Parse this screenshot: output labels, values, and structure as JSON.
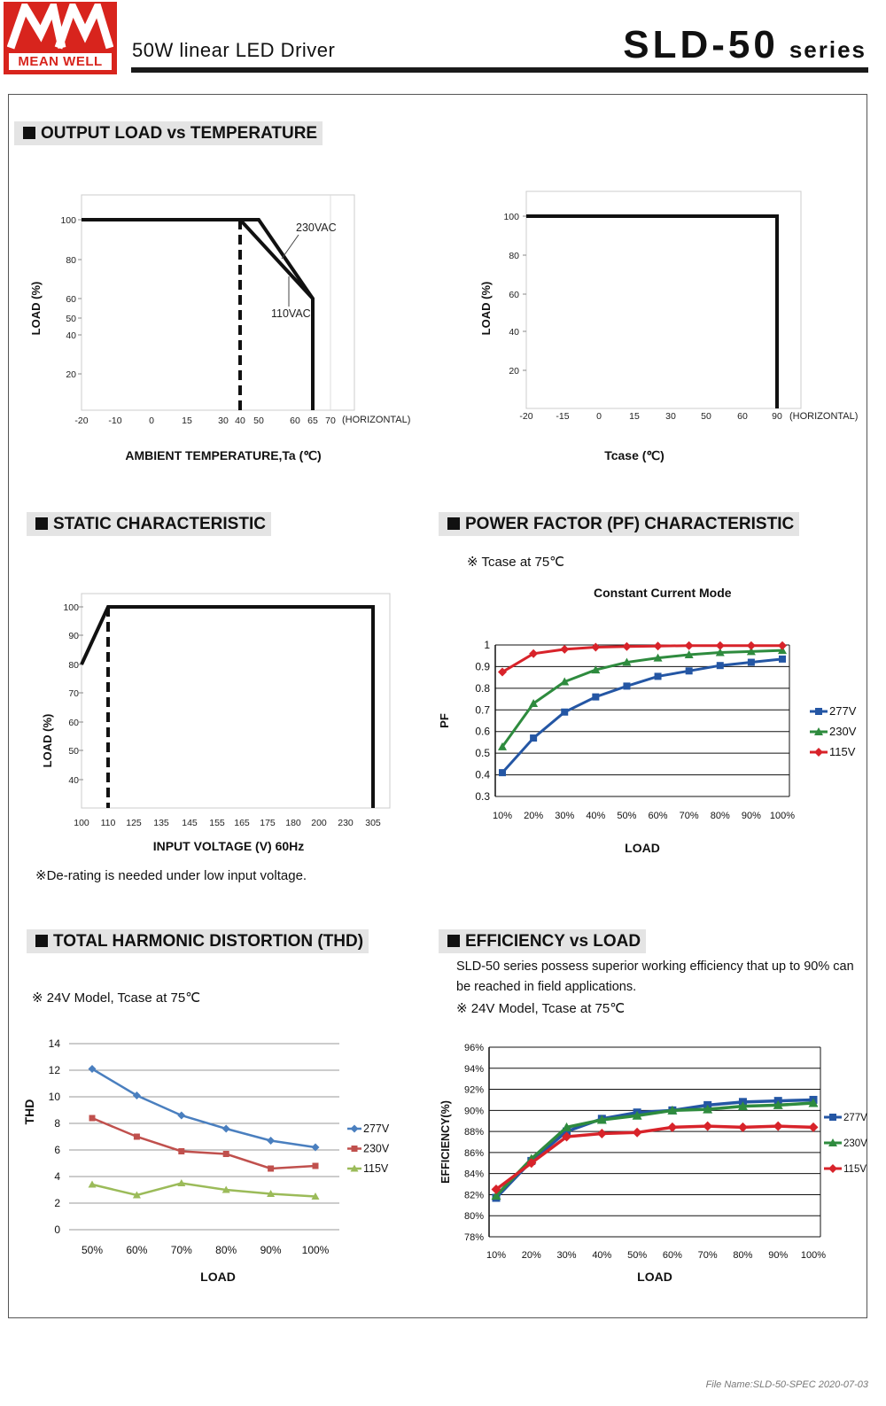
{
  "header": {
    "logo_mark": "MW",
    "brand": "MEAN WELL",
    "subtitle": "50W linear LED Driver",
    "model": "SLD-50",
    "series_word": "series"
  },
  "sections": {
    "output_load": "OUTPUT LOAD vs TEMPERATURE",
    "static": "STATIC CHARACTERISTIC",
    "pf": "POWER FACTOR (PF) CHARACTERISTIC",
    "thd": "TOTAL HARMONIC DISTORTION (THD)",
    "efficiency": "EFFICIENCY vs LOAD"
  },
  "notes": {
    "derating": "※De-rating is needed under low input voltage.",
    "pf_cond": "※ Tcase at 75℃",
    "pf_mode": "Constant Current Mode",
    "thd_cond": "※ 24V Model, Tcase at 75℃",
    "eff_desc_1": "SLD-50 series possess superior working efficiency that up to 90% can",
    "eff_desc_2": "be reached in field applications.",
    "eff_cond": "※ 24V Model, Tcase at 75℃"
  },
  "footer": "File Name:SLD-50-SPEC   2020-07-03",
  "colors": {
    "s277": "#2456a4",
    "s230": "#2e8b3e",
    "s115": "#d8232a",
    "thd277": "#4a7fbf",
    "thd230": "#c0504d",
    "thd115": "#9bbb59"
  },
  "chart_data": [
    {
      "id": "ambient",
      "type": "line",
      "title": "OUTPUT LOAD vs TEMPERATURE",
      "xlabel": "AMBIENT TEMPERATURE,Ta (℃)",
      "ylabel": "LOAD (%)",
      "x_ticks": [
        "-20",
        "-10",
        "0",
        "15",
        "30",
        "40",
        "50",
        "60",
        "65",
        "70"
      ],
      "x_suffix": "(HORIZONTAL)",
      "y_ticks": [
        "100",
        "80",
        "60",
        "50",
        "40",
        "20"
      ],
      "series": [
        {
          "name": "230VAC",
          "points": [
            [
              -20,
              100
            ],
            [
              50,
              100
            ],
            [
              65,
              60
            ],
            [
              65,
              0
            ]
          ]
        },
        {
          "name": "110VAC",
          "points": [
            [
              40,
              100
            ],
            [
              65,
              60
            ]
          ]
        }
      ],
      "marker_x": 40
    },
    {
      "id": "tcase",
      "type": "line",
      "xlabel": "Tcase (℃)",
      "ylabel": "LOAD (%)",
      "x_ticks": [
        "-20",
        "-15",
        "0",
        "15",
        "30",
        "50",
        "60",
        "90"
      ],
      "x_suffix": "(HORIZONTAL)",
      "y_ticks": [
        "100",
        "80",
        "60",
        "40",
        "20"
      ],
      "series": [
        {
          "name": "load",
          "points": [
            [
              -20,
              100
            ],
            [
              90,
              100
            ],
            [
              90,
              0
            ]
          ]
        }
      ]
    },
    {
      "id": "static",
      "type": "line",
      "title": "STATIC CHARACTERISTIC",
      "xlabel": "INPUT VOLTAGE (V) 60Hz",
      "ylabel": "LOAD (%)",
      "x_ticks": [
        "100",
        "110",
        "125",
        "135",
        "145",
        "155",
        "165",
        "175",
        "180",
        "200",
        "230",
        "305"
      ],
      "y_ticks": [
        "100",
        "90",
        "80",
        "70",
        "60",
        "50",
        "40"
      ],
      "series": [
        {
          "name": "load",
          "points": [
            [
              100,
              80
            ],
            [
              110,
              100
            ],
            [
              305,
              100
            ],
            [
              305,
              30
            ]
          ]
        }
      ],
      "marker_x": 110
    },
    {
      "id": "pf",
      "type": "line",
      "title": "POWER FACTOR (PF) CHARACTERISTIC",
      "xlabel": "LOAD",
      "ylabel": "PF",
      "categories": [
        "10%",
        "20%",
        "30%",
        "40%",
        "50%",
        "60%",
        "70%",
        "80%",
        "90%",
        "100%"
      ],
      "y_ticks": [
        "1",
        "0.9",
        "0.8",
        "0.7",
        "0.6",
        "0.5",
        "0.4",
        "0.3"
      ],
      "ylim": [
        0.3,
        1
      ],
      "series": [
        {
          "name": "277V",
          "values": [
            0.41,
            0.57,
            0.69,
            0.76,
            0.81,
            0.855,
            0.88,
            0.905,
            0.92,
            0.935
          ]
        },
        {
          "name": "230V",
          "values": [
            0.53,
            0.73,
            0.83,
            0.885,
            0.92,
            0.94,
            0.955,
            0.965,
            0.97,
            0.975
          ]
        },
        {
          "name": "115V",
          "values": [
            0.875,
            0.96,
            0.98,
            0.99,
            0.993,
            0.995,
            0.997,
            0.997,
            0.997,
            0.997
          ]
        }
      ]
    },
    {
      "id": "thd",
      "type": "line",
      "title": "TOTAL HARMONIC DISTORTION (THD)",
      "xlabel": "LOAD",
      "ylabel": "THD",
      "categories": [
        "50%",
        "60%",
        "70%",
        "80%",
        "90%",
        "100%"
      ],
      "y_ticks": [
        "14",
        "12",
        "10",
        "8",
        "6",
        "4",
        "2",
        "0"
      ],
      "ylim": [
        0,
        14
      ],
      "series": [
        {
          "name": "277V",
          "values": [
            12.1,
            10.1,
            8.6,
            7.6,
            6.7,
            6.2
          ]
        },
        {
          "name": "230V",
          "values": [
            8.4,
            7.0,
            5.9,
            5.7,
            4.6,
            4.8
          ]
        },
        {
          "name": "115V",
          "values": [
            3.4,
            2.6,
            3.5,
            3.0,
            2.7,
            2.5
          ]
        }
      ]
    },
    {
      "id": "efficiency",
      "type": "line",
      "title": "EFFICIENCY vs LOAD",
      "xlabel": "LOAD",
      "ylabel": "EFFICIENCY(%)",
      "categories": [
        "10%",
        "20%",
        "30%",
        "40%",
        "50%",
        "60%",
        "70%",
        "80%",
        "90%",
        "100%"
      ],
      "y_ticks": [
        "96%",
        "94%",
        "92%",
        "90%",
        "88%",
        "86%",
        "84%",
        "82%",
        "80%",
        "78%"
      ],
      "ylim": [
        78,
        96
      ],
      "series": [
        {
          "name": "277V",
          "values": [
            81.7,
            85.2,
            88.0,
            89.2,
            89.8,
            90.0,
            90.5,
            90.8,
            90.9,
            91.0
          ]
        },
        {
          "name": "230V",
          "values": [
            81.9,
            85.4,
            88.4,
            89.1,
            89.5,
            90.0,
            90.1,
            90.4,
            90.5,
            90.7
          ]
        },
        {
          "name": "115V",
          "values": [
            82.5,
            85.0,
            87.5,
            87.8,
            87.9,
            88.4,
            88.5,
            88.4,
            88.5,
            88.4
          ]
        }
      ]
    }
  ]
}
